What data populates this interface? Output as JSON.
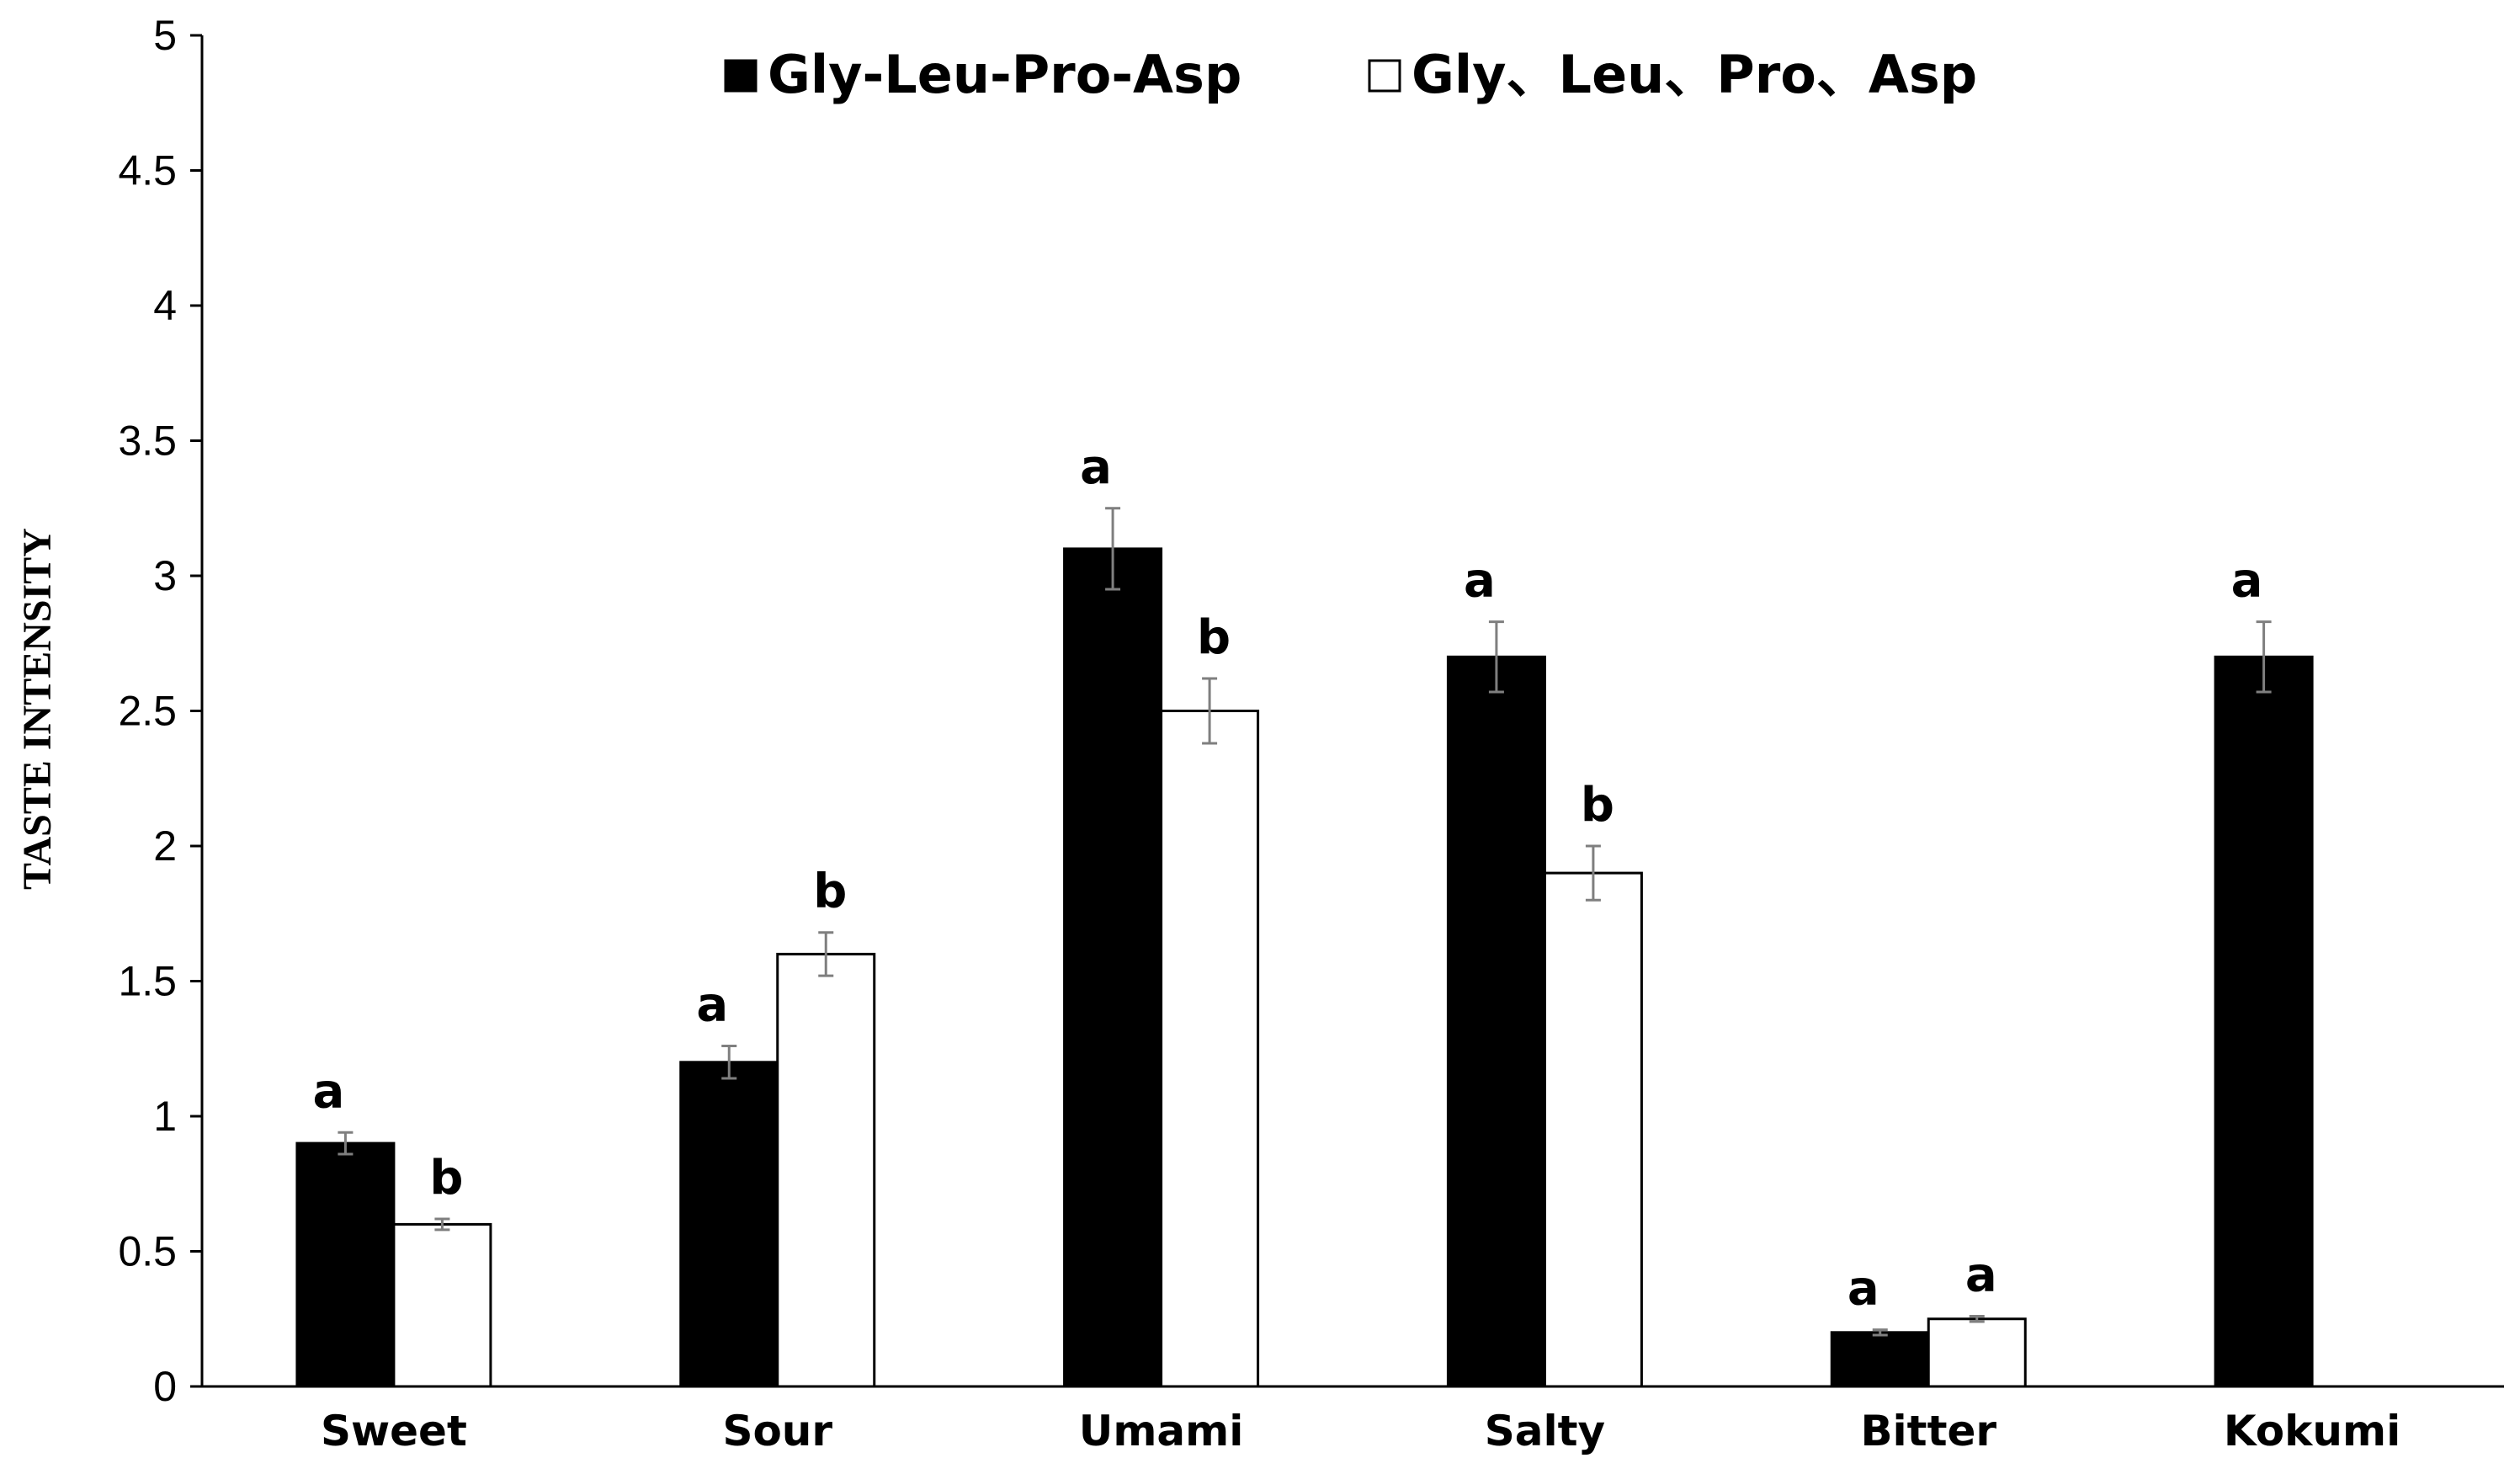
{
  "chart_data": {
    "type": "bar",
    "ylabel": "TASTE INTENSITY",
    "xlabel": "",
    "ylim": [
      0,
      5
    ],
    "yticks": [
      "0",
      "0.5",
      "1",
      "1.5",
      "2",
      "2.5",
      "3",
      "3.5",
      "4",
      "4.5",
      "5"
    ],
    "grid": false,
    "legend_position": "top",
    "categories": [
      "Sweet",
      "Sour",
      "Umami",
      "Salty",
      "Bitter",
      "Kokumi"
    ],
    "series": [
      {
        "name": "Gly-Leu-Pro-Asp",
        "color": "#000000",
        "values": [
          0.9,
          1.2,
          3.1,
          2.7,
          0.2,
          2.7
        ],
        "errors": [
          0.04,
          0.06,
          0.15,
          0.13,
          0.01,
          0.13
        ],
        "significance": [
          "a",
          "a",
          "a",
          "a",
          "a",
          "a"
        ]
      },
      {
        "name": "Gly、Leu、Pro、Asp",
        "color": "#ffffff",
        "values": [
          0.6,
          1.6,
          2.5,
          1.9,
          0.25,
          null
        ],
        "errors": [
          0.02,
          0.08,
          0.12,
          0.1,
          0.01,
          null
        ],
        "significance": [
          "b",
          "b",
          "b",
          "b",
          "a",
          ""
        ]
      }
    ]
  }
}
